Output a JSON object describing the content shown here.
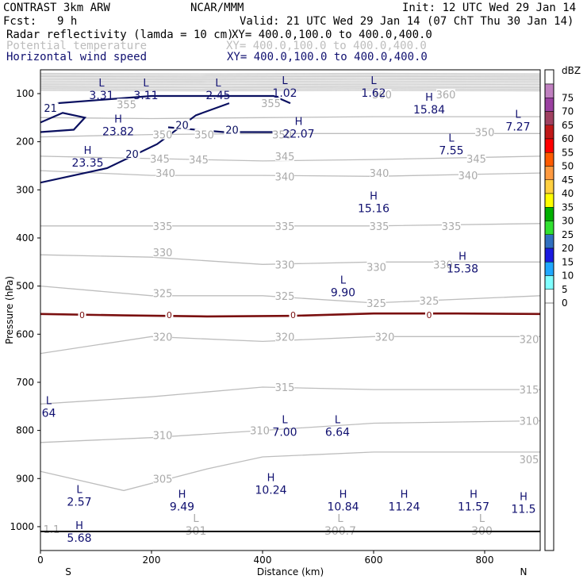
{
  "header": {
    "model": "CONTRAST  3km ARW",
    "center": "NCAR/MMM",
    "init": "Init: 12 UTC Wed 29 Jan 14",
    "fcst_label": "Fcst:",
    "fcst_value": "9 h",
    "valid": "Valid: 21 UTC Wed 29 Jan 14 (07 ChT Thu 30 Jan 14)"
  },
  "fields": [
    {
      "name": "Radar reflectivity (lamda = 10 cm)",
      "xy": "XY= 400.0,100.0 to 400.0,400.0",
      "color": "#000000"
    },
    {
      "name": "Potential temperature",
      "xy": "XY= 400.0,100.0 to 400.0,400.0",
      "color": "#bdbdbd"
    },
    {
      "name": "Horizontal wind speed",
      "xy": "XY= 400.0,100.0 to 400.0,400.0",
      "color": "#101070"
    }
  ],
  "colorbar": {
    "unit": "dBZ",
    "levels": [
      "75",
      "70",
      "65",
      "60",
      "55",
      "50",
      "45",
      "40",
      "35",
      "30",
      "25",
      "20",
      "15",
      "10",
      "5",
      "0"
    ],
    "colors": [
      "#ffffff",
      "#c080c0",
      "#9a40a0",
      "#a04060",
      "#c01818",
      "#ff0000",
      "#ff5a00",
      "#ff9a40",
      "#ffd040",
      "#ffff00",
      "#00b000",
      "#30e030",
      "#3070c0",
      "#1a1ae0",
      "#20a8ff",
      "#80ffff",
      "#ffffff"
    ]
  },
  "chart_data": {
    "type": "cross-section contour",
    "xlabel": "Distance (km)",
    "ylabel": "Pressure (hPa)",
    "xlim": [
      0,
      900
    ],
    "ylim": [
      1050,
      50
    ],
    "x_ticks": [
      "0",
      "200",
      "400",
      "600",
      "800"
    ],
    "y_ticks": [
      "100",
      "200",
      "300",
      "400",
      "500",
      "600",
      "700",
      "800",
      "900",
      "1000"
    ],
    "x_end_labels": {
      "left": "S",
      "right": "N"
    },
    "theta_contours": [
      {
        "level": 355,
        "p": [
          [
            0,
            150
          ],
          [
            200,
            152
          ],
          [
            400,
            150
          ],
          [
            600,
            148
          ],
          [
            900,
            148
          ]
        ]
      },
      {
        "level": 350,
        "p": [
          [
            0,
            190
          ],
          [
            200,
            185
          ],
          [
            400,
            183
          ],
          [
            600,
            183
          ],
          [
            900,
            183
          ]
        ]
      },
      {
        "level": 345,
        "p": [
          [
            0,
            230
          ],
          [
            200,
            235
          ],
          [
            400,
            240
          ],
          [
            600,
            237
          ],
          [
            900,
            230
          ]
        ]
      },
      {
        "level": 340,
        "p": [
          [
            0,
            260
          ],
          [
            200,
            270
          ],
          [
            400,
            270
          ],
          [
            600,
            272
          ],
          [
            900,
            265
          ]
        ]
      },
      {
        "level": 335,
        "p": [
          [
            0,
            375
          ],
          [
            200,
            375
          ],
          [
            400,
            375
          ],
          [
            600,
            375
          ],
          [
            900,
            370
          ]
        ]
      },
      {
        "level": 330,
        "p": [
          [
            0,
            435
          ],
          [
            200,
            440
          ],
          [
            400,
            455
          ],
          [
            600,
            450
          ],
          [
            900,
            450
          ]
        ]
      },
      {
        "level": 325,
        "p": [
          [
            0,
            500
          ],
          [
            200,
            520
          ],
          [
            400,
            520
          ],
          [
            600,
            535
          ],
          [
            900,
            520
          ]
        ]
      },
      {
        "level": 320,
        "p": [
          [
            0,
            640
          ],
          [
            200,
            605
          ],
          [
            400,
            615
          ],
          [
            600,
            605
          ],
          [
            900,
            605
          ]
        ]
      },
      {
        "level": 315,
        "p": [
          [
            0,
            745
          ],
          [
            200,
            730
          ],
          [
            400,
            710
          ],
          [
            600,
            715
          ],
          [
            900,
            715
          ]
        ]
      },
      {
        "level": 310,
        "p": [
          [
            0,
            825
          ],
          [
            200,
            815
          ],
          [
            400,
            800
          ],
          [
            600,
            785
          ],
          [
            900,
            780
          ]
        ]
      },
      {
        "level": 305,
        "p": [
          [
            0,
            885
          ],
          [
            150,
            925
          ],
          [
            300,
            880
          ],
          [
            400,
            855
          ],
          [
            600,
            845
          ],
          [
            900,
            845
          ]
        ]
      }
    ],
    "theta_labels": [
      {
        "text": "355",
        "x": 155,
        "p": 122
      },
      {
        "text": "355",
        "x": 415,
        "p": 120
      },
      {
        "text": "360",
        "x": 615,
        "p": 102
      },
      {
        "text": "360",
        "x": 730,
        "p": 102
      },
      {
        "text": "350",
        "x": 220,
        "p": 185
      },
      {
        "text": "350",
        "x": 295,
        "p": 185
      },
      {
        "text": "350",
        "x": 435,
        "p": 185
      },
      {
        "text": "350",
        "x": 800,
        "p": 180
      },
      {
        "text": "345",
        "x": 215,
        "p": 235
      },
      {
        "text": "345",
        "x": 285,
        "p": 237
      },
      {
        "text": "345",
        "x": 440,
        "p": 230
      },
      {
        "text": "345",
        "x": 785,
        "p": 235
      },
      {
        "text": "340",
        "x": 225,
        "p": 265
      },
      {
        "text": "340",
        "x": 440,
        "p": 272
      },
      {
        "text": "340",
        "x": 610,
        "p": 265
      },
      {
        "text": "340",
        "x": 770,
        "p": 270
      },
      {
        "text": "335",
        "x": 220,
        "p": 375
      },
      {
        "text": "335",
        "x": 440,
        "p": 375
      },
      {
        "text": "335",
        "x": 610,
        "p": 375
      },
      {
        "text": "335",
        "x": 740,
        "p": 375
      },
      {
        "text": "330",
        "x": 220,
        "p": 430
      },
      {
        "text": "330",
        "x": 440,
        "p": 455
      },
      {
        "text": "330",
        "x": 605,
        "p": 460
      },
      {
        "text": "330",
        "x": 725,
        "p": 455
      },
      {
        "text": "325",
        "x": 220,
        "p": 515
      },
      {
        "text": "325",
        "x": 440,
        "p": 520
      },
      {
        "text": "325",
        "x": 605,
        "p": 535
      },
      {
        "text": "325",
        "x": 700,
        "p": 530
      },
      {
        "text": "320",
        "x": 220,
        "p": 605
      },
      {
        "text": "320",
        "x": 440,
        "p": 605
      },
      {
        "text": "320",
        "x": 620,
        "p": 605
      },
      {
        "text": "320",
        "x": 880,
        "p": 610
      },
      {
        "text": "315",
        "x": 440,
        "p": 710
      },
      {
        "text": "315",
        "x": 880,
        "p": 715
      },
      {
        "text": "310",
        "x": 220,
        "p": 810
      },
      {
        "text": "310",
        "x": 395,
        "p": 800
      },
      {
        "text": "310",
        "x": 880,
        "p": 780
      },
      {
        "text": "305",
        "x": 220,
        "p": 900
      },
      {
        "text": "305",
        "x": 880,
        "p": 860
      },
      {
        "text": "1.1",
        "x": 20,
        "p": 1005
      }
    ],
    "wind_contours": [
      {
        "level": 20,
        "p": [
          [
            30,
            120
          ],
          [
            200,
            105
          ],
          [
            300,
            105
          ],
          [
            420,
            105
          ],
          [
            450,
            120
          ]
        ]
      },
      {
        "level": 20,
        "p": [
          [
            0,
            285
          ],
          [
            120,
            255
          ],
          [
            210,
            205
          ],
          [
            280,
            145
          ],
          [
            340,
            120
          ]
        ]
      },
      {
        "level": 20,
        "p": [
          [
            230,
            170
          ],
          [
            330,
            180
          ],
          [
            420,
            180
          ]
        ]
      },
      {
        "level": 21,
        "p": [
          [
            0,
            160
          ],
          [
            40,
            140
          ],
          [
            80,
            150
          ],
          [
            60,
            175
          ],
          [
            0,
            180
          ]
        ]
      }
    ],
    "wind_labels": [
      {
        "text": "20",
        "x": 255,
        "p": 165
      },
      {
        "text": "20",
        "x": 345,
        "p": 175
      },
      {
        "text": "20",
        "x": 165,
        "p": 225
      },
      {
        "text": "21",
        "x": 18,
        "p": 130
      }
    ],
    "reflectivity_contour": {
      "level": 0,
      "p": 560,
      "label": "0",
      "label_x": [
        75,
        232,
        455,
        700
      ]
    },
    "extrema": [
      {
        "type": "L",
        "value": "3.31",
        "x": 110,
        "p": 85
      },
      {
        "type": "L",
        "value": "3.11",
        "x": 190,
        "p": 85
      },
      {
        "type": "L",
        "value": "2.45",
        "x": 320,
        "p": 85
      },
      {
        "type": "L",
        "value": "1.02",
        "x": 440,
        "p": 80
      },
      {
        "type": "L",
        "value": "1.62",
        "x": 600,
        "p": 80
      },
      {
        "type": "H",
        "value": "15.84",
        "x": 700,
        "p": 115
      },
      {
        "type": "L",
        "value": "7.27",
        "x": 860,
        "p": 150
      },
      {
        "type": "H",
        "value": "23.82",
        "x": 140,
        "p": 160
      },
      {
        "type": "H",
        "value": "22.07",
        "x": 465,
        "p": 165
      },
      {
        "type": "L",
        "value": "7.55",
        "x": 740,
        "p": 200
      },
      {
        "type": "H",
        "value": "23.35",
        "x": 85,
        "p": 225
      },
      {
        "type": "H",
        "value": "15.16",
        "x": 600,
        "p": 320
      },
      {
        "type": "H",
        "value": "15.38",
        "x": 760,
        "p": 445
      },
      {
        "type": "L",
        "value": "9.90",
        "x": 545,
        "p": 495
      },
      {
        "type": "L",
        "value": "64",
        "x": 15,
        "p": 745
      },
      {
        "type": "L",
        "value": "7.00",
        "x": 440,
        "p": 785
      },
      {
        "type": "L",
        "value": "6.64",
        "x": 535,
        "p": 785
      },
      {
        "type": "L",
        "value": "2.57",
        "x": 70,
        "p": 930
      },
      {
        "type": "H",
        "value": "9.49",
        "x": 255,
        "p": 940
      },
      {
        "type": "H",
        "value": "10.24",
        "x": 415,
        "p": 905
      },
      {
        "type": "H",
        "value": "10.84",
        "x": 545,
        "p": 940
      },
      {
        "type": "H",
        "value": "11.24",
        "x": 655,
        "p": 940
      },
      {
        "type": "H",
        "value": "11.57",
        "x": 780,
        "p": 940
      },
      {
        "type": "H",
        "value": "11.5",
        "x": 870,
        "p": 945
      },
      {
        "type": "L",
        "value": "301",
        "x": 280,
        "p": 990
      },
      {
        "type": "L",
        "value": "300.7",
        "x": 540,
        "p": 990
      },
      {
        "type": "L",
        "value": "300",
        "x": 795,
        "p": 990
      },
      {
        "type": "H",
        "value": "5.68",
        "x": 70,
        "p": 1005
      }
    ]
  }
}
